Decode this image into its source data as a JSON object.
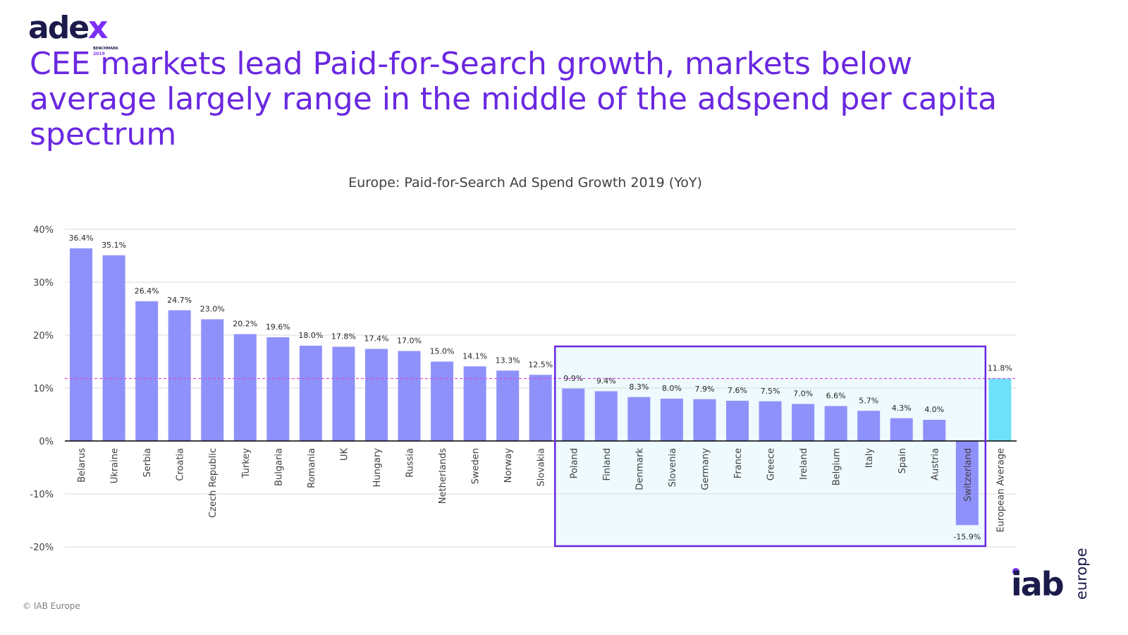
{
  "logo": {
    "word_main": "ade",
    "word_accent": "x",
    "subtitle": "BENCHMARK",
    "year": "2019"
  },
  "headline": "CEE markets lead Paid-for-Search growth, markets below average largely range in the middle of the adspend per capita spectrum",
  "footer": {
    "copyright": "© IAB Europe",
    "iab_logo_main": "iab",
    "iab_logo_sub": "europe"
  },
  "colors": {
    "bar": "#8f91fb",
    "highlight_bar": "#6fe0f9",
    "avg_line": "#d44fd6",
    "box_border": "#6a28e0",
    "box_fill": "#eefafd",
    "grid": "#d9d9d9"
  },
  "chart_data": {
    "type": "bar",
    "title": "Europe: Paid-for-Search Ad Spend Growth 2019 (YoY)",
    "xlabel": "",
    "ylabel": "",
    "ylim": [
      -20,
      40
    ],
    "yticks": [
      -20,
      -10,
      0,
      10,
      20,
      30,
      40
    ],
    "ytick_labels": [
      "-20%",
      "-10%",
      "0%",
      "10%",
      "20%",
      "30%",
      "40%"
    ],
    "average_line": 11.8,
    "highlight_box": {
      "from_category": "Poland",
      "to_category": "Switzerland"
    },
    "categories": [
      "Belarus",
      "Ukraine",
      "Serbia",
      "Croatia",
      "Czech Republic",
      "Turkey",
      "Bulgaria",
      "Romania",
      "UK",
      "Hungary",
      "Russia",
      "Netherlands",
      "Sweden",
      "Norway",
      "Slovakia",
      "Poland",
      "Finland",
      "Denmark",
      "Slovenia",
      "Germany",
      "France",
      "Greece",
      "Ireland",
      "Belgium",
      "Italy",
      "Spain",
      "Austria",
      "Switzerland",
      "European Average"
    ],
    "values": [
      36.4,
      35.1,
      26.4,
      24.7,
      23.0,
      20.2,
      19.6,
      18.0,
      17.8,
      17.4,
      17.0,
      15.0,
      14.1,
      13.3,
      12.5,
      9.9,
      9.4,
      8.3,
      8.0,
      7.9,
      7.6,
      7.5,
      7.0,
      6.6,
      5.7,
      4.3,
      4.0,
      -15.9,
      11.8
    ],
    "value_labels": [
      "36.4%",
      "35.1%",
      "26.4%",
      "24.7%",
      "23.0%",
      "20.2%",
      "19.6%",
      "18.0%",
      "17.8%",
      "17.4%",
      "17.0%",
      "15.0%",
      "14.1%",
      "13.3%",
      "12.5%",
      "9.9%",
      "9.4%",
      "8.3%",
      "8.0%",
      "7.9%",
      "7.6%",
      "7.5%",
      "7.0%",
      "6.6%",
      "5.7%",
      "4.3%",
      "4.0%",
      "-15.9%",
      "11.8%"
    ],
    "highlighted_category": "European Average"
  }
}
